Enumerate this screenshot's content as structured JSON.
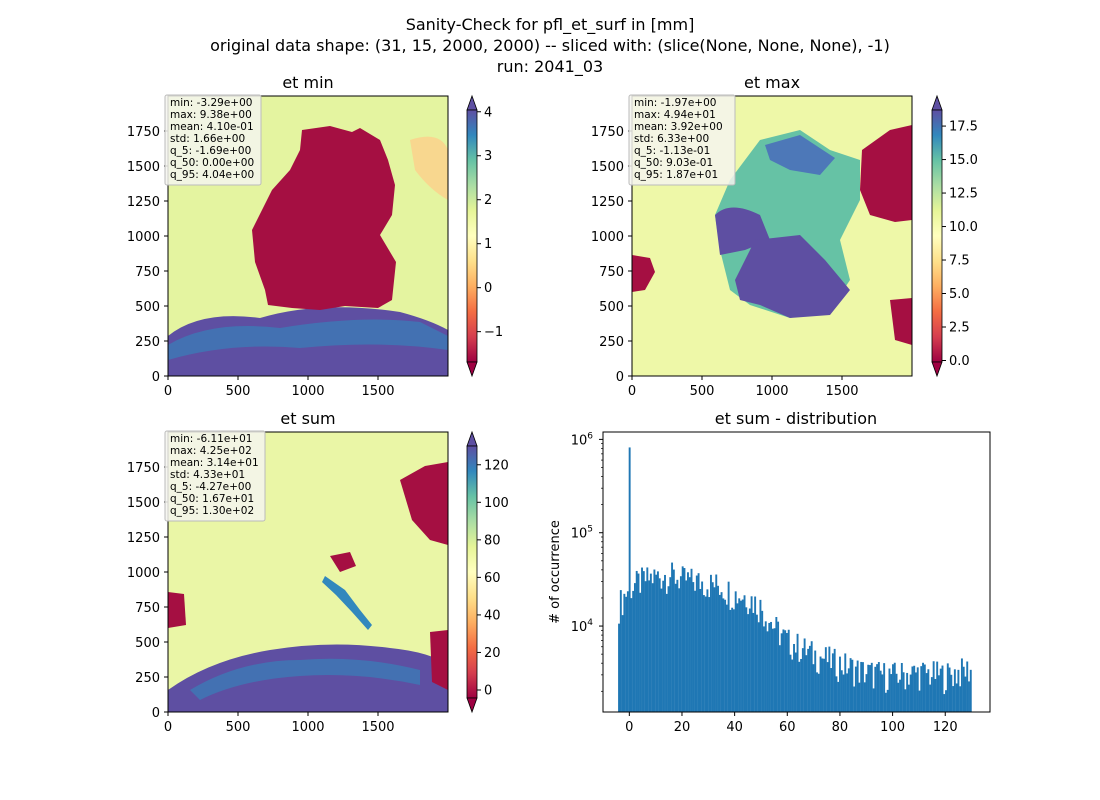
{
  "figure": {
    "title_lines": [
      "Sanity-Check for pfl_et_surf in [mm]",
      "original data shape: (31, 15, 2000, 2000) -- sliced with: (slice(None, None, None), -1)",
      "run: 2041_03"
    ]
  },
  "panels": [
    {
      "id": "et-min",
      "title": "et min",
      "x_ticks": [
        "0",
        "500",
        "1000",
        "1500"
      ],
      "y_ticks": [
        "0",
        "250",
        "500",
        "750",
        "1000",
        "1250",
        "1500",
        "1750"
      ],
      "stats": [
        "min: -3.29e+00",
        "max: 9.38e+00",
        "mean: 4.10e-01",
        "std: 1.66e+00",
        "q_5: -1.69e+00",
        "q_50: 0.00e+00",
        "q_95: 4.04e+00"
      ],
      "colorbar": {
        "vmin": -1.69,
        "vmax": 4.04,
        "ticks": [
          -1,
          0,
          1,
          2,
          3,
          4
        ],
        "tick_labels": [
          "−1",
          "0",
          "1",
          "2",
          "3",
          "4"
        ],
        "colormap": "Spectral"
      }
    },
    {
      "id": "et-max",
      "title": "et max",
      "x_ticks": [
        "0",
        "500",
        "1000",
        "1500"
      ],
      "y_ticks": [
        "0",
        "250",
        "500",
        "750",
        "1000",
        "1250",
        "1500",
        "1750"
      ],
      "stats": [
        "min: -1.97e+00",
        "max: 4.94e+01",
        "mean: 3.92e+00",
        "std: 6.33e+00",
        "q_5: -1.13e-01",
        "q_50: 9.03e-01",
        "q_95: 1.87e+01"
      ],
      "colorbar": {
        "vmin": -0.113,
        "vmax": 18.7,
        "ticks": [
          0,
          2.5,
          5,
          7.5,
          10,
          12.5,
          15,
          17.5
        ],
        "tick_labels": [
          "0.0",
          "2.5",
          "5.0",
          "7.5",
          "10.0",
          "12.5",
          "15.0",
          "17.5"
        ],
        "colormap": "Spectral"
      }
    },
    {
      "id": "et-sum",
      "title": "et sum",
      "x_ticks": [
        "0",
        "500",
        "1000",
        "1500"
      ],
      "y_ticks": [
        "0",
        "250",
        "500",
        "750",
        "1000",
        "1250",
        "1500",
        "1750"
      ],
      "stats": [
        "min: -6.11e+01",
        "max: 4.25e+02",
        "mean: 3.14e+01",
        "std: 4.33e+01",
        "q_5: -4.27e+00",
        "q_50: 1.67e+01",
        "q_95: 1.30e+02"
      ],
      "colorbar": {
        "vmin": -4.27,
        "vmax": 130,
        "ticks": [
          0,
          20,
          40,
          60,
          80,
          100,
          120
        ],
        "tick_labels": [
          "0",
          "20",
          "40",
          "60",
          "80",
          "100",
          "120"
        ],
        "colormap": "Spectral"
      }
    }
  ],
  "chart_data": {
    "type": "bar",
    "title": "et sum - distribution",
    "xlabel": "",
    "ylabel": "# of occurrence",
    "yscale": "log",
    "ylim": [
      1200,
      1200000
    ],
    "xlim": [
      -10,
      137
    ],
    "x_ticks": [
      0,
      20,
      40,
      60,
      80,
      100,
      120
    ],
    "y_ticks": [
      10000,
      100000,
      1000000
    ],
    "y_tick_labels": [
      [
        "10",
        "4"
      ],
      [
        "10",
        "5"
      ],
      [
        "10",
        "6"
      ]
    ],
    "color": "#1f77b4",
    "bin_range": [
      -4.27,
      130
    ],
    "bin_count": 200,
    "spike": {
      "x": 0,
      "value": 820000
    },
    "anchors": [
      [
        -4,
        17000
      ],
      [
        0,
        26000
      ],
      [
        5,
        31000
      ],
      [
        10,
        34000
      ],
      [
        15,
        36000
      ],
      [
        20,
        32000
      ],
      [
        30,
        29000
      ],
      [
        35,
        27000
      ],
      [
        40,
        22000
      ],
      [
        45,
        21000
      ],
      [
        50,
        16000
      ],
      [
        55,
        10000
      ],
      [
        60,
        7000
      ],
      [
        65,
        6000
      ],
      [
        70,
        5000
      ],
      [
        80,
        4000
      ],
      [
        90,
        3200
      ],
      [
        100,
        3000
      ],
      [
        110,
        3200
      ],
      [
        120,
        3000
      ],
      [
        130,
        3500
      ]
    ]
  }
}
